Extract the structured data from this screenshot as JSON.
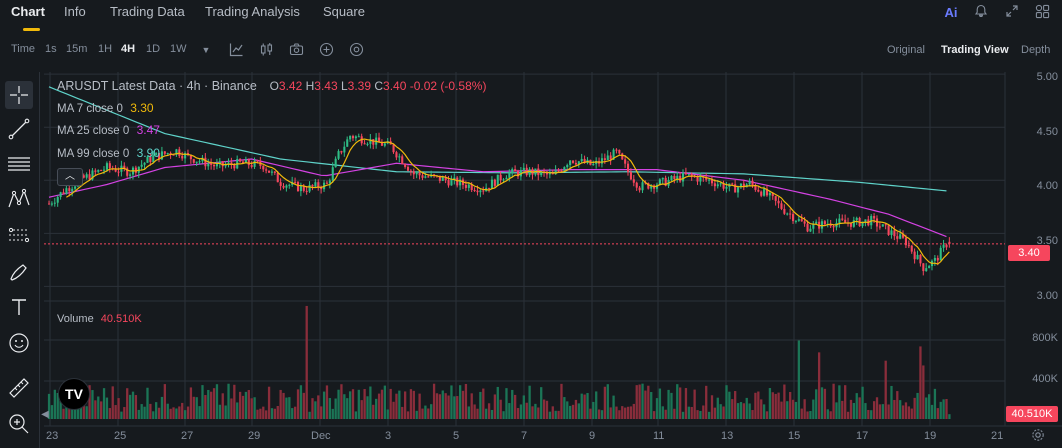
{
  "nav": {
    "tabs": [
      {
        "label": "Chart",
        "active": true
      },
      {
        "label": "Info"
      },
      {
        "label": "Trading Data"
      },
      {
        "label": "Trading Analysis"
      },
      {
        "label": "Square"
      }
    ],
    "ai_label": "Ai",
    "icons": [
      "ai-icon",
      "bell-icon",
      "expand-icon",
      "grid-icon"
    ]
  },
  "toolbar": {
    "time_label": "Time",
    "intervals": [
      "1s",
      "15m",
      "1H",
      "4H",
      "1D",
      "1W"
    ],
    "active_interval": "4H",
    "icons": [
      "chevron-down-icon",
      "indicators-icon",
      "candles-icon",
      "camera-icon",
      "add-circle-icon",
      "settings-circle-icon"
    ],
    "views": [
      "Original",
      "Trading View",
      "Depth"
    ],
    "active_view": "Trading View"
  },
  "drawing_tools": [
    "crosshair-icon",
    "trendline-icon",
    "horizontal-lines-icon",
    "pattern-icon",
    "fib-icon",
    "brush-icon",
    "text-icon",
    "emoji-icon",
    "ruler-icon",
    "zoom-in-icon"
  ],
  "legend": {
    "title": "ARUSDT Latest Data · 4h · Binance",
    "open_label": "O",
    "open": "3.42",
    "high_label": "H",
    "high": "3.43",
    "low_label": "L",
    "low": "3.39",
    "close_label": "C",
    "close": "3.40",
    "change": "-0.02 (-0.58%)",
    "ma7_label": "MA 7 close 0",
    "ma7_value": "3.30",
    "ma7_color": "#f0b90b",
    "ma25_label": "MA 25 close 0",
    "ma25_value": "3.47",
    "ma25_color": "#d442e3",
    "ma99_label": "MA 99 close 0",
    "ma99_value": "3.90",
    "ma99_color": "#5fd3ca",
    "collapse_icon": "chevron-up-icon"
  },
  "volume": {
    "label": "Volume",
    "value": "40.510K",
    "axis_labels": [
      "800K",
      "400K"
    ],
    "current_tag": "40.510K"
  },
  "price_axis": {
    "labels": [
      "5.00",
      "4.50",
      "4.00",
      "3.50",
      "3.00"
    ],
    "current_tag": "3.40"
  },
  "date_axis": [
    "23",
    "25",
    "27",
    "29",
    "Dec",
    "3",
    "5",
    "7",
    "9",
    "11",
    "13",
    "15",
    "17",
    "19",
    "21"
  ],
  "colors": {
    "up": "#2ebd85",
    "down": "#f6465d",
    "up_volume": "#1b7556",
    "down_volume": "#8a2d3b",
    "accent": "#f0b90b",
    "background": "#161a1e",
    "grid": "#2b3139"
  },
  "chart_data": {
    "type": "candlestick",
    "interval": "4h",
    "ylim": [
      2.9,
      5.02
    ],
    "anchors": [
      [
        0,
        3.78
      ],
      [
        6,
        3.92
      ],
      [
        12,
        4.02
      ],
      [
        20,
        4.12
      ],
      [
        28,
        4.08
      ],
      [
        36,
        4.22
      ],
      [
        44,
        4.28
      ],
      [
        48,
        4.22
      ],
      [
        58,
        4.13
      ],
      [
        66,
        4.16
      ],
      [
        74,
        4.14
      ],
      [
        80,
        3.98
      ],
      [
        88,
        3.92
      ],
      [
        96,
        3.96
      ],
      [
        100,
        4.24
      ],
      [
        104,
        4.42
      ],
      [
        110,
        4.38
      ],
      [
        118,
        4.32
      ],
      [
        126,
        4.06
      ],
      [
        134,
        4.02
      ],
      [
        142,
        3.97
      ],
      [
        150,
        3.92
      ],
      [
        158,
        4.06
      ],
      [
        166,
        4.08
      ],
      [
        174,
        4.04
      ],
      [
        180,
        4.2
      ],
      [
        188,
        4.14
      ],
      [
        196,
        4.26
      ],
      [
        200,
        4.08
      ],
      [
        204,
        3.94
      ],
      [
        212,
        3.98
      ],
      [
        220,
        4.04
      ],
      [
        228,
        4.0
      ],
      [
        236,
        3.92
      ],
      [
        242,
        3.97
      ],
      [
        248,
        3.86
      ],
      [
        254,
        3.72
      ],
      [
        262,
        3.56
      ],
      [
        270,
        3.6
      ],
      [
        278,
        3.6
      ],
      [
        284,
        3.62
      ],
      [
        290,
        3.52
      ],
      [
        296,
        3.42
      ],
      [
        302,
        3.18
      ],
      [
        306,
        3.24
      ],
      [
        310,
        3.4
      ]
    ],
    "ma99_anchors": [
      [
        0,
        4.88
      ],
      [
        40,
        4.44
      ],
      [
        80,
        4.2
      ],
      [
        120,
        4.08
      ],
      [
        160,
        4.07
      ],
      [
        200,
        4.08
      ],
      [
        240,
        4.06
      ],
      [
        280,
        3.98
      ],
      [
        310,
        3.9
      ]
    ],
    "ma25_anchors": [
      [
        0,
        3.84
      ],
      [
        20,
        3.96
      ],
      [
        40,
        4.12
      ],
      [
        70,
        4.2
      ],
      [
        95,
        4.04
      ],
      [
        120,
        4.16
      ],
      [
        150,
        4.08
      ],
      [
        180,
        4.1
      ],
      [
        210,
        4.1
      ],
      [
        240,
        4.0
      ],
      [
        270,
        3.82
      ],
      [
        290,
        3.68
      ],
      [
        310,
        3.47
      ]
    ],
    "volume_spikes": [
      [
        89,
        950
      ],
      [
        259,
        660
      ],
      [
        266,
        560
      ],
      [
        289,
        490
      ],
      [
        301,
        610
      ],
      [
        302,
        450
      ]
    ],
    "last": {
      "open": 3.42,
      "high": 3.43,
      "low": 3.39,
      "close": 3.4,
      "volume": 40510
    }
  }
}
